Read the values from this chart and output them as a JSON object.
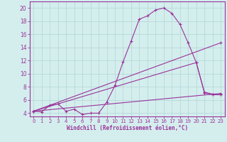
{
  "xlabel": "Windchill (Refroidissement éolien,°C)",
  "bg_color": "#d4eeee",
  "grid_color": "#b8d8d8",
  "line_color": "#993399",
  "border_color": "#993399",
  "xlim": [
    -0.5,
    23.5
  ],
  "ylim": [
    3.5,
    21.0
  ],
  "xticks": [
    0,
    1,
    2,
    3,
    4,
    5,
    6,
    7,
    8,
    9,
    10,
    11,
    12,
    13,
    14,
    15,
    16,
    17,
    18,
    19,
    20,
    21,
    22,
    23
  ],
  "yticks": [
    4,
    6,
    8,
    10,
    12,
    14,
    16,
    18,
    20
  ],
  "line1_x": [
    0,
    1,
    2,
    3,
    4,
    5,
    6,
    7,
    8,
    9,
    10,
    11,
    12,
    13,
    14,
    15,
    16,
    17,
    18,
    19,
    20,
    21,
    22,
    23
  ],
  "line1_y": [
    4.3,
    4.2,
    5.2,
    5.4,
    4.3,
    4.6,
    3.8,
    4.0,
    4.0,
    5.7,
    8.2,
    11.8,
    15.0,
    18.3,
    18.8,
    19.7,
    20.0,
    19.2,
    17.5,
    14.7,
    11.7,
    7.1,
    6.8,
    6.8
  ],
  "line2_x": [
    0,
    23
  ],
  "line2_y": [
    4.3,
    7.0
  ],
  "line3_x": [
    0,
    23
  ],
  "line3_y": [
    4.3,
    14.7
  ],
  "line4_x": [
    0,
    20,
    21,
    22,
    23
  ],
  "line4_y": [
    4.3,
    11.7,
    7.2,
    6.9,
    6.8
  ],
  "xlabel_fontsize": 5.5,
  "tick_fontsize": 5.0,
  "ytick_fontsize": 5.5
}
